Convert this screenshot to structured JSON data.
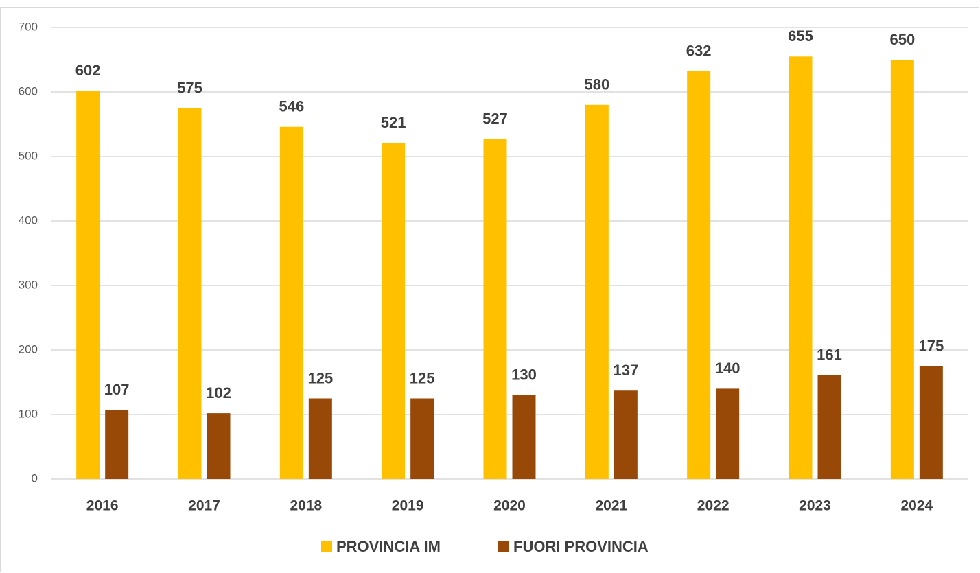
{
  "chart_data": {
    "type": "bar",
    "categories": [
      "2016",
      "2017",
      "2018",
      "2019",
      "2020",
      "2021",
      "2022",
      "2023",
      "2024"
    ],
    "series": [
      {
        "name": "PROVINCIA IM",
        "color": "#ffc000",
        "values": [
          602,
          575,
          546,
          521,
          527,
          580,
          632,
          655,
          650
        ]
      },
      {
        "name": "FUORI PROVINCIA",
        "color": "#984807",
        "values": [
          107,
          102,
          125,
          125,
          130,
          137,
          140,
          161,
          175
        ]
      }
    ],
    "ylim": [
      0,
      700
    ],
    "yticks": [
      0,
      100,
      200,
      300,
      400,
      500,
      600,
      700
    ],
    "grid": true,
    "legend": "bottom"
  }
}
